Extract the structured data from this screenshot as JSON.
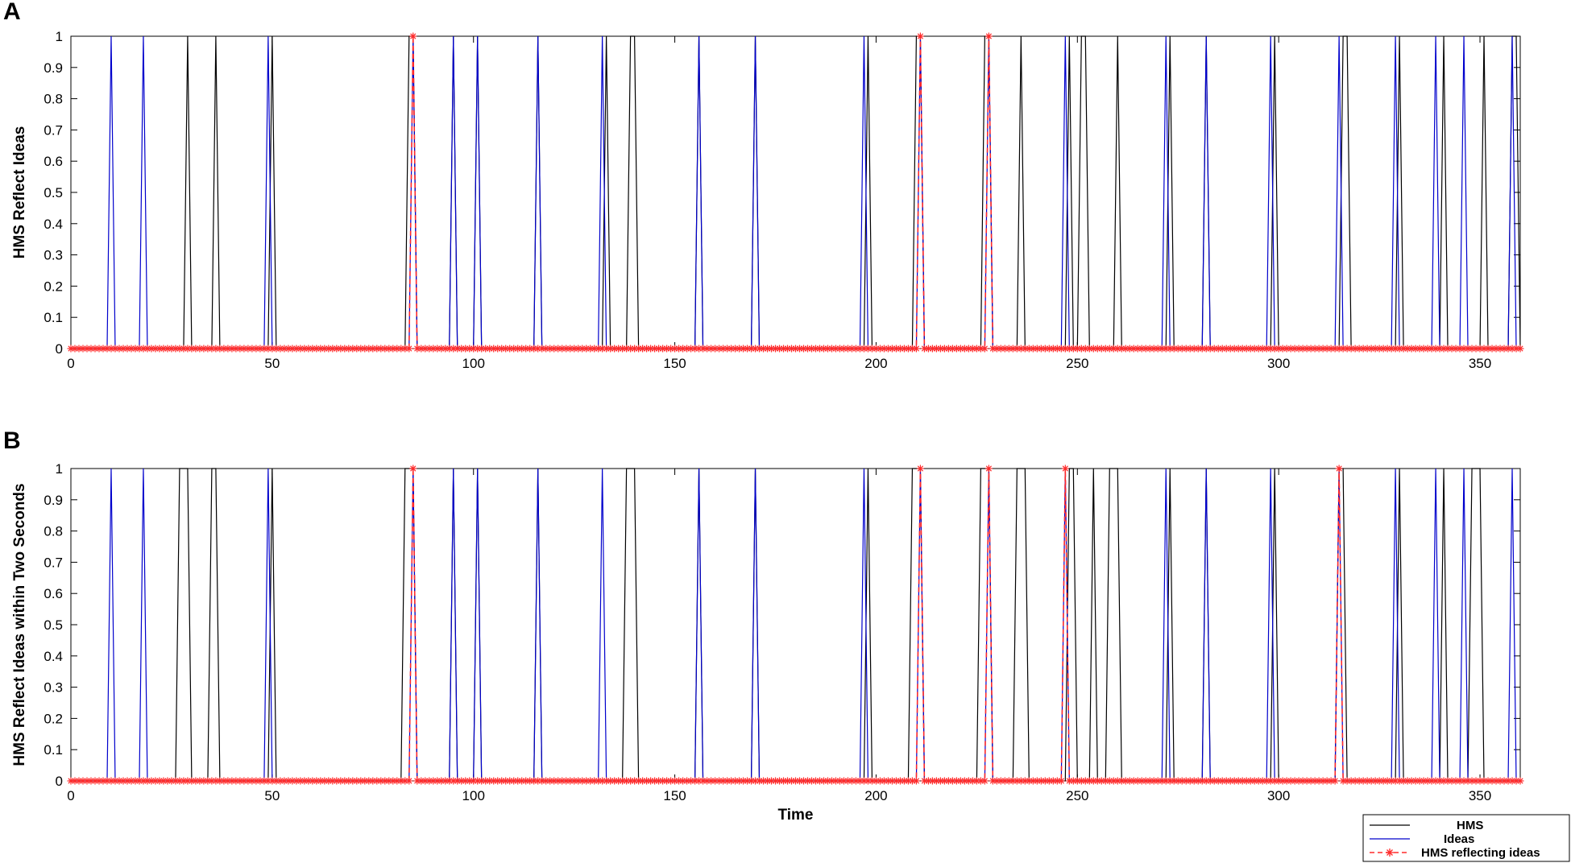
{
  "chart_data": [
    {
      "panel": "A",
      "type": "line",
      "xlabel": "",
      "ylabel": "HMS Reflect Ideas",
      "xlim": [
        0,
        360
      ],
      "ylim": [
        0,
        1
      ],
      "xticks": [
        "0",
        "50",
        "100",
        "150",
        "200",
        "250",
        "300",
        "350"
      ],
      "yticks": [
        "0",
        "0.1",
        "0.2",
        "0.3",
        "0.4",
        "0.5",
        "0.6",
        "0.7",
        "0.8",
        "0.9",
        "1"
      ],
      "series": [
        {
          "name": "HMS",
          "color": "#000000",
          "style": "solid",
          "ones": [
            29,
            36,
            50,
            84,
            85,
            95,
            101,
            116,
            133,
            139,
            140,
            156,
            170,
            198,
            210,
            211,
            227,
            228,
            236,
            248,
            251,
            252,
            260,
            273,
            282,
            299,
            316,
            317,
            330,
            341,
            351,
            358,
            359
          ]
        },
        {
          "name": "Ideas",
          "color": "#0000cc",
          "style": "solid",
          "ones": [
            10,
            18,
            49,
            85,
            95,
            101,
            116,
            132,
            156,
            170,
            197,
            211,
            228,
            247,
            272,
            282,
            298,
            315,
            329,
            339,
            346,
            358
          ]
        },
        {
          "name": "HMS reflecting ideas",
          "color": "#ff2a2a",
          "style": "dashed-star",
          "ones": [
            85,
            211,
            228
          ]
        }
      ]
    },
    {
      "panel": "B",
      "type": "line",
      "xlabel": "Time",
      "ylabel": "HMS Reflect Ideas within Two Seconds",
      "xlim": [
        0,
        360
      ],
      "ylim": [
        0,
        1
      ],
      "xticks": [
        "0",
        "50",
        "100",
        "150",
        "200",
        "250",
        "300",
        "350"
      ],
      "yticks": [
        "0",
        "0.1",
        "0.2",
        "0.3",
        "0.4",
        "0.5",
        "0.6",
        "0.7",
        "0.8",
        "0.9",
        "1"
      ],
      "series": [
        {
          "name": "HMS",
          "color": "#000000",
          "style": "solid",
          "ones": [
            27,
            28,
            29,
            35,
            36,
            50,
            83,
            84,
            85,
            95,
            101,
            116,
            138,
            139,
            140,
            156,
            170,
            198,
            209,
            210,
            211,
            226,
            227,
            228,
            235,
            236,
            237,
            248,
            249,
            254,
            258,
            259,
            260,
            273,
            282,
            299,
            315,
            316,
            330,
            341,
            348,
            349,
            350
          ]
        },
        {
          "name": "Ideas",
          "color": "#0000cc",
          "style": "solid",
          "ones": [
            10,
            18,
            49,
            85,
            95,
            101,
            116,
            132,
            156,
            170,
            197,
            211,
            228,
            247,
            272,
            282,
            298,
            315,
            329,
            339,
            346,
            358
          ]
        },
        {
          "name": "HMS reflecting ideas",
          "color": "#ff2a2a",
          "style": "dashed-star",
          "ones": [
            85,
            211,
            228,
            247,
            315
          ]
        }
      ]
    }
  ],
  "legend": {
    "placement": "bottom-right",
    "entries": [
      "HMS",
      "Ideas",
      "HMS reflecting ideas"
    ]
  }
}
